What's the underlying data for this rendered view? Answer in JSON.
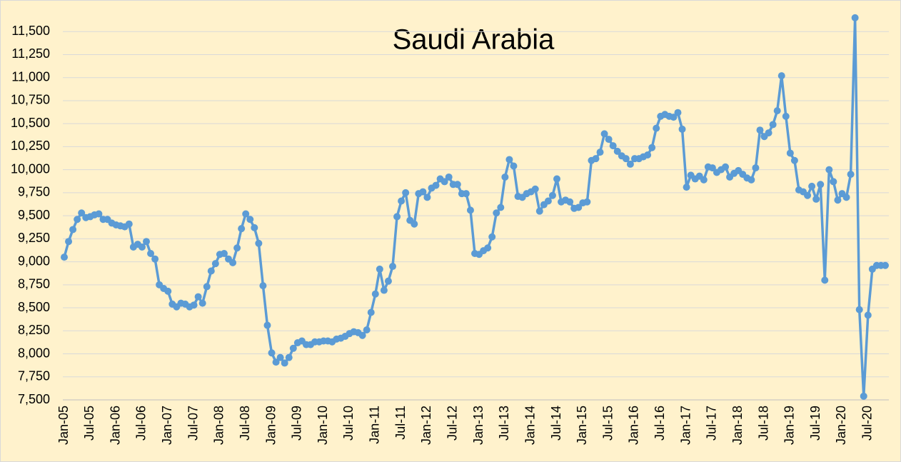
{
  "chart_data": {
    "type": "line",
    "title": "Saudi Arabia",
    "categories": [
      "Jan-05",
      null,
      null,
      null,
      null,
      null,
      "Jul-05",
      null,
      null,
      null,
      null,
      null,
      "Jan-06",
      null,
      null,
      null,
      null,
      null,
      "Jul-06",
      null,
      null,
      null,
      null,
      null,
      "Jan-07",
      null,
      null,
      null,
      null,
      null,
      "Jul-07",
      null,
      null,
      null,
      null,
      null,
      "Jan-08",
      null,
      null,
      null,
      null,
      null,
      "Jul-08",
      null,
      null,
      null,
      null,
      null,
      "Jan-09",
      null,
      null,
      null,
      null,
      null,
      "Jul-09",
      null,
      null,
      null,
      null,
      null,
      "Jan-10",
      null,
      null,
      null,
      null,
      null,
      "Jul-10",
      null,
      null,
      null,
      null,
      null,
      "Jan-11",
      null,
      null,
      null,
      null,
      null,
      "Jul-11",
      null,
      null,
      null,
      null,
      null,
      "Jan-12",
      null,
      null,
      null,
      null,
      null,
      "Jul-12",
      null,
      null,
      null,
      null,
      null,
      "Jan-13",
      null,
      null,
      null,
      null,
      null,
      "Jul-13",
      null,
      null,
      null,
      null,
      null,
      "Jan-14",
      null,
      null,
      null,
      null,
      null,
      "Jul-14",
      null,
      null,
      null,
      null,
      null,
      "Jan-15",
      null,
      null,
      null,
      null,
      null,
      "Jul-15",
      null,
      null,
      null,
      null,
      null,
      "Jan-16",
      null,
      null,
      null,
      null,
      null,
      "Jul-16",
      null,
      null,
      null,
      null,
      null,
      "Jan-17",
      null,
      null,
      null,
      null,
      null,
      "Jul-17",
      null,
      null,
      null,
      null,
      null,
      "Jan-18",
      null,
      null,
      null,
      null,
      null,
      "Jul-18",
      null,
      null,
      null,
      null,
      null,
      "Jan-19",
      null,
      null,
      null,
      null,
      null,
      "Jul-19",
      null,
      null,
      null,
      null,
      null,
      "Jan-20",
      null,
      null,
      null,
      null,
      null,
      "Jul-20",
      null,
      null,
      null,
      null
    ],
    "series": [
      {
        "color": "#5b9bd5",
        "values": [
          9050,
          9220,
          9350,
          9460,
          9530,
          9480,
          9490,
          9510,
          9520,
          9460,
          9460,
          9420,
          9400,
          9390,
          9380,
          9410,
          9160,
          9190,
          9160,
          9220,
          9090,
          9030,
          8750,
          8710,
          8680,
          8540,
          8510,
          8550,
          8540,
          8510,
          8530,
          8620,
          8550,
          8730,
          8900,
          8980,
          9080,
          9090,
          9030,
          8990,
          9150,
          9360,
          9520,
          9460,
          9370,
          9200,
          8740,
          8310,
          8010,
          7910,
          7960,
          7900,
          7960,
          8060,
          8120,
          8140,
          8100,
          8100,
          8130,
          8130,
          8140,
          8140,
          8130,
          8160,
          8170,
          8190,
          8220,
          8240,
          8230,
          8200,
          8260,
          8450,
          8650,
          8920,
          8690,
          8790,
          8950,
          9490,
          9660,
          9750,
          9450,
          9410,
          9740,
          9760,
          9700,
          9800,
          9830,
          9900,
          9870,
          9920,
          9840,
          9840,
          9740,
          9740,
          9560,
          9090,
          9080,
          9120,
          9150,
          9270,
          9530,
          9590,
          9920,
          10110,
          10040,
          9710,
          9700,
          9740,
          9760,
          9790,
          9550,
          9620,
          9660,
          9720,
          9900,
          9650,
          9670,
          9650,
          9580,
          9590,
          9640,
          9650,
          10100,
          10120,
          10190,
          10390,
          10330,
          10260,
          10200,
          10150,
          10120,
          10060,
          10120,
          10120,
          10140,
          10160,
          10240,
          10450,
          10580,
          10600,
          10580,
          10570,
          10620,
          10440,
          9810,
          9940,
          9900,
          9930,
          9890,
          10030,
          10020,
          9970,
          10000,
          10030,
          9920,
          9960,
          9990,
          9950,
          9910,
          9890,
          10020,
          10430,
          10360,
          10400,
          10490,
          10640,
          11020,
          10580,
          10180,
          10100,
          9780,
          9760,
          9720,
          9820,
          9680,
          9840,
          8800,
          10000,
          9870,
          9670,
          9740,
          9700,
          9950,
          11650,
          8480,
          7540,
          8420,
          8920,
          8960,
          8960,
          8960
        ]
      }
    ],
    "ylim": [
      7500,
      11750
    ],
    "yticks": [
      {
        "value": 7500,
        "label": "7,500"
      },
      {
        "value": 7750,
        "label": "7,750"
      },
      {
        "value": 8000,
        "label": "8,000"
      },
      {
        "value": 8250,
        "label": "8,250"
      },
      {
        "value": 8500,
        "label": "8,500"
      },
      {
        "value": 8750,
        "label": "8,750"
      },
      {
        "value": 9000,
        "label": "9,000"
      },
      {
        "value": 9250,
        "label": "9,250"
      },
      {
        "value": 9500,
        "label": "9,500"
      },
      {
        "value": 9750,
        "label": "9,750"
      },
      {
        "value": 10000,
        "label": "10,000"
      },
      {
        "value": 10250,
        "label": "10,250"
      },
      {
        "value": 10500,
        "label": "10,500"
      },
      {
        "value": 10750,
        "label": "10,750"
      },
      {
        "value": 11000,
        "label": "11,000"
      },
      {
        "value": 11250,
        "label": "11,250"
      },
      {
        "value": 11500,
        "label": "11,500"
      }
    ],
    "grid": true
  }
}
